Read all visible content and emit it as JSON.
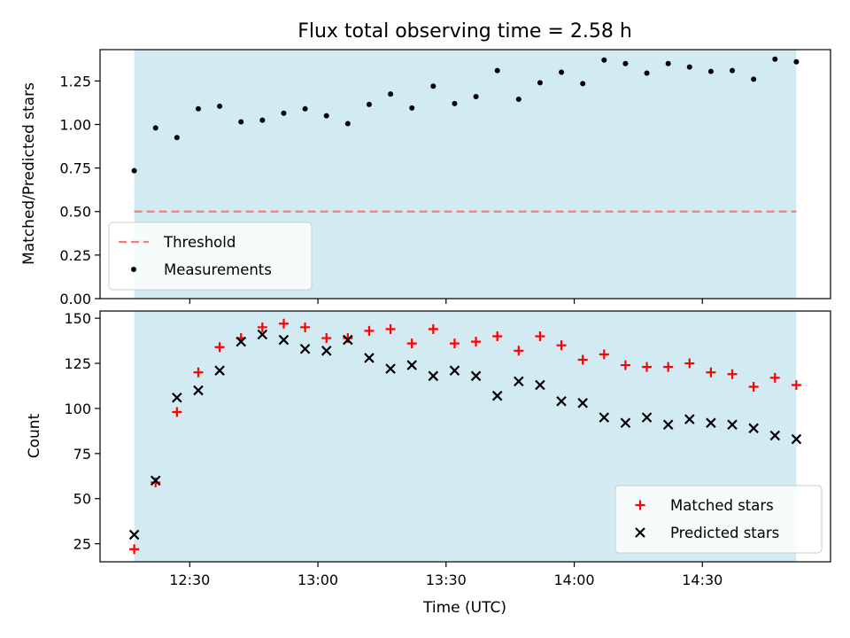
{
  "chart_data": [
    {
      "type": "scatter",
      "title": "Flux total observing time = 2.58 h",
      "xlabel": "",
      "ylabel": "Matched/Predicted stars",
      "xlim": [
        "12:09",
        "15:00"
      ],
      "ylim": [
        0,
        1.43
      ],
      "yticks": [
        "0.00",
        "0.25",
        "0.50",
        "0.75",
        "1.00",
        "1.25"
      ],
      "xticks": [
        "12:30",
        "13:00",
        "13:30",
        "14:00",
        "14:30"
      ],
      "show_xtick_labels": false,
      "shaded_span": {
        "from": "12:17",
        "to": "14:52",
        "color": "#add8e6"
      },
      "legend_position": "lower-left",
      "threshold": {
        "name": "Threshold",
        "value": 0.5,
        "color": "#f08080",
        "style": "dashed"
      },
      "series": [
        {
          "name": "Measurements",
          "marker": "dot",
          "color": "#000000",
          "x": [
            "12:17",
            "12:22",
            "12:27",
            "12:32",
            "12:37",
            "12:42",
            "12:47",
            "12:52",
            "12:57",
            "13:02",
            "13:07",
            "13:12",
            "13:17",
            "13:22",
            "13:27",
            "13:32",
            "13:37",
            "13:42",
            "13:47",
            "13:52",
            "13:57",
            "14:02",
            "14:07",
            "14:12",
            "14:17",
            "14:22",
            "14:27",
            "14:32",
            "14:37",
            "14:42",
            "14:47",
            "14:52"
          ],
          "y": [
            0.735,
            0.98,
            0.925,
            1.09,
            1.105,
            1.015,
            1.025,
            1.065,
            1.09,
            1.05,
            1.005,
            1.115,
            1.175,
            1.095,
            1.22,
            1.12,
            1.16,
            1.31,
            1.145,
            1.24,
            1.3,
            1.235,
            1.37,
            1.35,
            1.295,
            1.35,
            1.33,
            1.305,
            1.31,
            1.26,
            1.375,
            1.36
          ]
        }
      ]
    },
    {
      "type": "scatter",
      "title": "",
      "xlabel": "Time (UTC)",
      "ylabel": "Count",
      "xlim": [
        "12:09",
        "15:00"
      ],
      "ylim": [
        15,
        154
      ],
      "yticks": [
        25,
        50,
        75,
        100,
        125,
        150
      ],
      "xticks": [
        "12:30",
        "13:00",
        "13:30",
        "14:00",
        "14:30"
      ],
      "show_xtick_labels": true,
      "shaded_span": {
        "from": "12:17",
        "to": "14:52",
        "color": "#add8e6"
      },
      "legend_position": "lower-right",
      "series": [
        {
          "name": "Matched stars",
          "marker": "plus",
          "color": "#ff0000",
          "x": [
            "12:17",
            "12:22",
            "12:27",
            "12:32",
            "12:37",
            "12:42",
            "12:47",
            "12:52",
            "12:57",
            "13:02",
            "13:07",
            "13:12",
            "13:17",
            "13:22",
            "13:27",
            "13:32",
            "13:37",
            "13:42",
            "13:47",
            "13:52",
            "13:57",
            "14:02",
            "14:07",
            "14:12",
            "14:17",
            "14:22",
            "14:27",
            "14:32",
            "14:37",
            "14:42",
            "14:47",
            "14:52"
          ],
          "y": [
            22,
            59,
            98,
            120,
            134,
            139,
            145,
            147,
            145,
            139,
            139,
            143,
            144,
            136,
            144,
            136,
            137,
            140,
            132,
            140,
            135,
            127,
            130,
            124,
            123,
            123,
            125,
            120,
            119,
            112,
            117,
            113
          ]
        },
        {
          "name": "Predicted stars",
          "marker": "x",
          "color": "#000000",
          "x": [
            "12:17",
            "12:22",
            "12:27",
            "12:32",
            "12:37",
            "12:42",
            "12:47",
            "12:52",
            "12:57",
            "13:02",
            "13:07",
            "13:12",
            "13:17",
            "13:22",
            "13:27",
            "13:32",
            "13:37",
            "13:42",
            "13:47",
            "13:52",
            "13:57",
            "14:02",
            "14:07",
            "14:12",
            "14:17",
            "14:22",
            "14:27",
            "14:32",
            "14:37",
            "14:42",
            "14:47",
            "14:52"
          ],
          "y": [
            30,
            60,
            106,
            110,
            121,
            137,
            141,
            138,
            133,
            132,
            138,
            128,
            122,
            124,
            118,
            121,
            118,
            107,
            115,
            113,
            104,
            103,
            95,
            92,
            95,
            91,
            94,
            92,
            91,
            89,
            85,
            83
          ]
        }
      ]
    }
  ]
}
